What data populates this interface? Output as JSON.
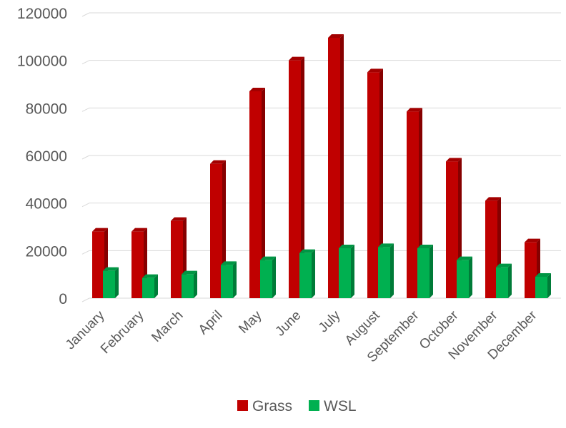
{
  "chart_data": {
    "type": "bar",
    "categories": [
      "January",
      "February",
      "March",
      "April",
      "May",
      "June",
      "July",
      "August",
      "September",
      "October",
      "November",
      "December"
    ],
    "series": [
      {
        "name": "Grass",
        "color": "#C00000",
        "values": [
          28000,
          28000,
          32500,
          56500,
          87000,
          100000,
          109500,
          95000,
          78500,
          57500,
          41000,
          23500
        ]
      },
      {
        "name": "WSL",
        "color": "#00B050",
        "values": [
          11500,
          8500,
          10000,
          14000,
          16000,
          19000,
          21000,
          21500,
          21000,
          16000,
          13000,
          9000
        ]
      }
    ],
    "ylim": [
      0,
      120000
    ],
    "yticks": [
      "0",
      "20000",
      "40000",
      "60000",
      "80000",
      "100000",
      "120000"
    ],
    "grid": true,
    "legend": "bottom-center"
  }
}
